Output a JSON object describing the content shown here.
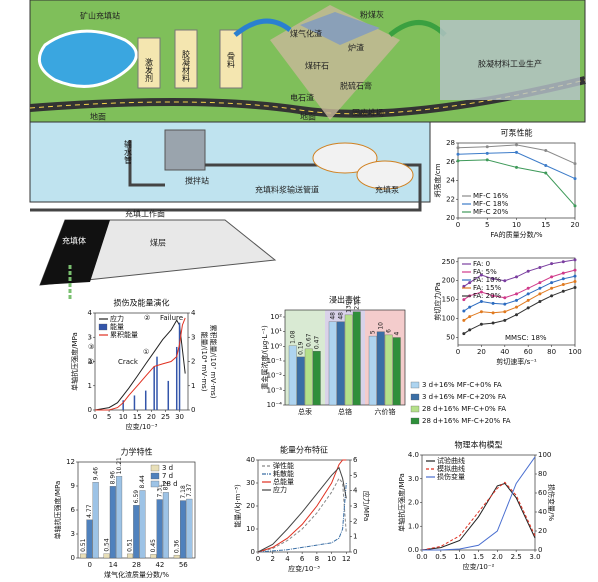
{
  "scene": {
    "labels": [
      "矿山充填站",
      "激发剂",
      "胶凝材料",
      "骨料",
      "煤气化渣",
      "粉煤灰",
      "炉渣",
      "煤矸石",
      "脱硫石膏",
      "电石渣",
      "固废堆场",
      "地面",
      "地面",
      "胶凝材料工业生产",
      "输水管",
      "搅拌站",
      "充填料浆输送管道",
      "充填泵",
      "充填工作面",
      "充填体",
      "煤层"
    ]
  },
  "chart_data": [
    {
      "type": "line",
      "title": "可泵性能",
      "xlabel": "FA的质量分数/%",
      "ylabel": "坍落度/cm",
      "x": [
        0,
        5,
        10,
        15,
        20
      ],
      "xlim": [
        0,
        20
      ],
      "xticks": [
        0,
        5,
        10,
        15,
        20
      ],
      "ylim": [
        20,
        28
      ],
      "yticks": [
        20,
        22,
        24,
        26,
        28
      ],
      "legend": "lower left",
      "markers": true,
      "series": [
        {
          "name": "MF-C 16%",
          "color": "#8a8a8a",
          "values": [
            27.5,
            27.6,
            27.8,
            27.2,
            25.8
          ]
        },
        {
          "name": "MF-C 18%",
          "color": "#3d7cc9",
          "values": [
            26.8,
            26.9,
            27.0,
            25.6,
            24.2
          ]
        },
        {
          "name": "MF-C 20%",
          "color": "#3f9a5a",
          "values": [
            26.1,
            26.2,
            25.4,
            24.8,
            21.3
          ]
        }
      ]
    },
    {
      "type": "line",
      "xlabel": "剪切速率/s⁻¹",
      "ylabel": "剪切应力/Pa",
      "x": [
        5,
        10,
        20,
        30,
        40,
        50,
        60,
        70,
        80,
        90,
        100
      ],
      "xlim": [
        0,
        100
      ],
      "xticks": [
        0,
        20,
        40,
        60,
        80,
        100
      ],
      "ylim": [
        30,
        260
      ],
      "yticks": [
        50,
        100,
        150,
        200,
        250
      ],
      "legend": "upper left",
      "markers": true,
      "annotations": [
        "MMSC: 18%"
      ],
      "series": [
        {
          "name": "FA: 0",
          "color": "#7b3fa0",
          "values": [
            185,
            195,
            215,
            205,
            200,
            210,
            225,
            235,
            245,
            250,
            255
          ]
        },
        {
          "name": "FA: 5%",
          "color": "#d03a8a",
          "values": [
            150,
            160,
            170,
            160,
            155,
            165,
            180,
            195,
            210,
            220,
            228
          ]
        },
        {
          "name": "FA: 10%",
          "color": "#2d6cc0",
          "values": [
            120,
            130,
            145,
            140,
            138,
            148,
            165,
            180,
            195,
            205,
            212
          ]
        },
        {
          "name": "FA: 15%",
          "color": "#e07a20",
          "values": [
            95,
            105,
            118,
            115,
            118,
            130,
            148,
            165,
            180,
            190,
            198
          ]
        },
        {
          "name": "FA: 20%",
          "color": "#333333",
          "values": [
            60,
            70,
            85,
            88,
            95,
            110,
            128,
            145,
            160,
            172,
            182
          ]
        }
      ]
    },
    {
      "type": "line",
      "title": "损伤及能量演化",
      "xlabel": "应变/10⁻³",
      "ylabel": "单轴抗压强度/MPa",
      "y2label": "能量/(10⁴ mV·ms)",
      "y3label": "累积能量/(10⁷ mV·ms)",
      "x": [
        0,
        5,
        8,
        10,
        12,
        15,
        18,
        21,
        24,
        27,
        29,
        30,
        31,
        32
      ],
      "xlim": [
        0,
        33
      ],
      "xticks": [
        0,
        5,
        10,
        15,
        20,
        25,
        30
      ],
      "ylim": [
        0,
        4
      ],
      "yticks": [
        0,
        1,
        2,
        3,
        4
      ],
      "y2lim": [
        0,
        4
      ],
      "y2ticks": [
        0,
        1,
        2,
        3,
        4
      ],
      "legend": "upper left",
      "annotations": [
        "①",
        "②",
        "③",
        "④",
        "Crack",
        "Failure"
      ],
      "series": [
        {
          "name": "应力",
          "color": "#222222",
          "values": [
            0,
            0.1,
            0.3,
            0.6,
            0.9,
            1.4,
            1.9,
            2.4,
            2.9,
            3.3,
            3.7,
            3.5,
            2.5,
            1.5
          ]
        },
        {
          "name": "能量",
          "color": "#3355aa",
          "kind": "bar",
          "axis": "y2",
          "x": [
            10,
            14,
            18,
            21,
            22,
            26,
            29,
            30
          ],
          "values": [
            0.4,
            0.6,
            0.8,
            1.8,
            2.2,
            1.2,
            2.6,
            3.6
          ]
        },
        {
          "name": "累积能量",
          "color": "#e03020",
          "axis": "y2",
          "values": [
            0,
            0,
            0.1,
            0.3,
            0.6,
            1.0,
            1.4,
            1.8,
            1.9,
            2.0,
            2.2,
            2.7,
            3.5,
            3.8
          ]
        }
      ]
    },
    {
      "type": "bar",
      "title": "浸出毒性",
      "ylabel": "重金属浓度/(μg·L⁻¹)",
      "log_scale": true,
      "categories": [
        "总汞",
        "总铬",
        "六价铬"
      ],
      "category_colors": [
        "#d9ead3",
        "#d9d2e9",
        "#f4cccc"
      ],
      "ylim": [
        0.0001,
        300
      ],
      "yticks": [
        {
          "value": 100,
          "label": "10²"
        },
        {
          "value": 10,
          "label": "10¹"
        },
        {
          "value": 1,
          "label": "10⁰"
        },
        {
          "value": 0.1,
          "label": "10⁻¹"
        },
        {
          "value": 0.01,
          "label": "10⁻²"
        },
        {
          "value": 0.001,
          "label": "10⁻³"
        },
        {
          "value": 0.0001,
          "label": "10⁻⁴"
        }
      ],
      "legend": "outside right",
      "series": [
        {
          "name": "3 d+16% MF-C+0% FA",
          "color": "#aed4f0",
          "values": [
            1.08,
            48,
            5
          ]
        },
        {
          "name": "3 d+16% MF-C+20% FA",
          "color": "#3a6ea5",
          "values": [
            0.19,
            48,
            10
          ]
        },
        {
          "name": "28 d+16% MF-C+0% FA",
          "color": "#b5e08a",
          "values": [
            0.67,
            139,
            6
          ]
        },
        {
          "name": "28 d+16% MF-C+20% FA",
          "color": "#2f8f3a",
          "values": [
            0.47,
            230,
            4
          ]
        }
      ]
    },
    {
      "type": "bar",
      "title": "力学特性",
      "xlabel": "煤气化渣质量分数/%",
      "ylabel": "单轴抗压强度/MPa",
      "categories": [
        "0",
        "14",
        "28",
        "42",
        "56"
      ],
      "ylim": [
        0,
        12
      ],
      "yticks": [
        0,
        3,
        6,
        9,
        12
      ],
      "legend": "upper right",
      "series": [
        {
          "name": "3 d",
          "color": "#e8dfb8",
          "values": [
            0.51,
            0.54,
            0.51,
            0.45,
            0.36
          ]
        },
        {
          "name": "7 d",
          "color": "#4f81bd",
          "values": [
            4.77,
            8.96,
            6.59,
            7.31,
            7.18
          ]
        },
        {
          "name": "28 d",
          "color": "#9dc3e6",
          "values": [
            9.46,
            10.21,
            8.44,
            8.2,
            7.37
          ]
        }
      ]
    },
    {
      "type": "line",
      "title": "能量分布特征",
      "xlabel": "应变/10⁻³",
      "ylabel": "能量/(kJ·m⁻³)",
      "y2label": "应力/MPa",
      "x": [
        0,
        2,
        4,
        6,
        8,
        10,
        11,
        11.5,
        12
      ],
      "xlim": [
        0,
        12.5
      ],
      "xticks": [
        0,
        2,
        4,
        6,
        8,
        10,
        12
      ],
      "ylim": [
        0,
        40
      ],
      "yticks": [
        0,
        10,
        20,
        30,
        40
      ],
      "y2lim": [
        0,
        6
      ],
      "y2ticks": [
        0,
        1,
        2,
        3,
        4,
        5,
        6
      ],
      "legend": "upper left",
      "series": [
        {
          "name": "弹性能",
          "color": "#888888",
          "dash": "3,2",
          "values": [
            0,
            1.5,
            5,
            10,
            17,
            26,
            32,
            30,
            8
          ]
        },
        {
          "name": "耗散能",
          "color": "#3a6ea5",
          "dash": "4,1,1,1",
          "values": [
            0,
            0.5,
            1,
            2,
            3,
            4,
            6,
            10,
            30
          ]
        },
        {
          "name": "总能量",
          "color": "#e03020",
          "values": [
            0,
            2,
            6,
            12,
            20,
            30,
            38,
            40,
            40
          ]
        },
        {
          "name": "应力",
          "color": "#444444",
          "axis": "y2",
          "values": [
            0,
            0.5,
            1.5,
            2.6,
            3.8,
            5.0,
            5.5,
            4.8,
            3.5
          ]
        }
      ]
    },
    {
      "type": "line",
      "title": "物理本构模型",
      "xlabel": "应变/10⁻²",
      "ylabel": "单轴抗压强度/MPa",
      "y2label": "损伤变量/%",
      "x": [
        0,
        0.5,
        1.0,
        1.5,
        2.0,
        2.2,
        2.5,
        3.0
      ],
      "xlim": [
        0,
        3
      ],
      "xticks": [
        {
          "value": 0,
          "label": "0.0"
        },
        0.5,
        {
          "value": 1,
          "label": "1.0"
        },
        1.5,
        {
          "value": 2,
          "label": "2.0"
        },
        2.5,
        {
          "value": 3,
          "label": "3.0"
        }
      ],
      "ylim": [
        0,
        4
      ],
      "yticks": [
        {
          "value": 0,
          "label": "0.0"
        },
        {
          "value": 1,
          "label": "1.0"
        },
        {
          "value": 2,
          "label": "2.0"
        },
        {
          "value": 3,
          "label": "3.0"
        },
        {
          "value": 4,
          "label": "4.0"
        }
      ],
      "y2lim": [
        0,
        100
      ],
      "y2ticks": [
        0,
        20,
        40,
        60,
        80,
        100
      ],
      "legend": "upper left",
      "series": [
        {
          "name": "试验曲线",
          "color": "#222222",
          "values": [
            0,
            0.1,
            0.4,
            1.4,
            2.7,
            2.8,
            2.2,
            0.5
          ]
        },
        {
          "name": "模拟曲线",
          "color": "#e03020",
          "dash": "3,2",
          "values": [
            0,
            0.15,
            0.6,
            1.6,
            2.6,
            2.85,
            2.3,
            0.6
          ]
        },
        {
          "name": "损伤变量",
          "color": "#4a6fd0",
          "axis": "y2",
          "values": [
            0,
            0,
            1,
            5,
            20,
            40,
            70,
            98
          ]
        }
      ]
    }
  ]
}
